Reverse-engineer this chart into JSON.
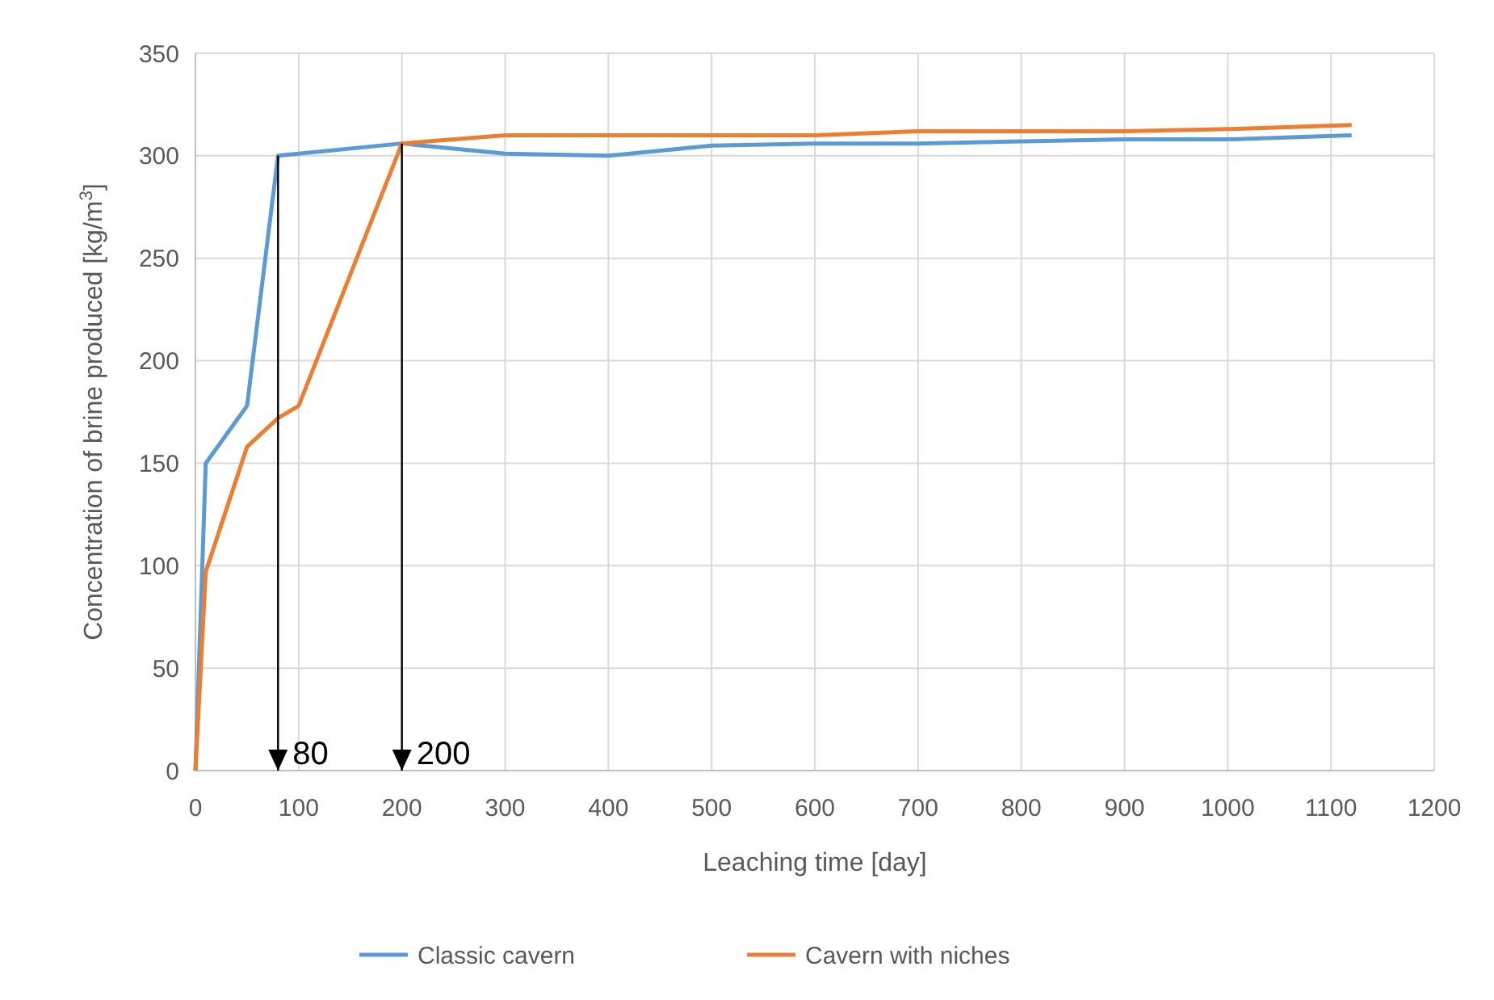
{
  "chart_data": {
    "type": "line",
    "xlabel": "Leaching time [day]",
    "ylabel": "Concentration of brine produced [kg/m$^{3}$]",
    "xlim": [
      0,
      1200
    ],
    "xticks": [
      0,
      100,
      200,
      300,
      400,
      500,
      600,
      700,
      800,
      900,
      1000,
      1100,
      1200
    ],
    "ylim": [
      0,
      350
    ],
    "yticks": [
      0,
      50,
      100,
      150,
      200,
      250,
      300,
      350
    ],
    "grid": true,
    "legend": "bottom",
    "marker": "none",
    "line_style": "solid",
    "series": [
      {
        "name": "Classic cavern",
        "color": "#5b9bd5",
        "x": [
          0,
          10,
          50,
          80,
          200,
          300,
          400,
          500,
          600,
          700,
          800,
          900,
          1000,
          1120
        ],
        "values": [
          0,
          150,
          178,
          300,
          306,
          301,
          300,
          305,
          306,
          306,
          307,
          308,
          308,
          310
        ]
      },
      {
        "name": "Cavern with niches",
        "color": "#ed7d31",
        "x": [
          0,
          10,
          50,
          80,
          100,
          200,
          300,
          400,
          500,
          600,
          700,
          800,
          900,
          1000,
          1120
        ],
        "values": [
          0,
          97,
          158,
          172,
          178,
          306,
          310,
          310,
          310,
          310,
          312,
          312,
          312,
          313,
          315
        ]
      }
    ],
    "ref_lines": [
      {
        "axis": "x",
        "value": 80,
        "label": "80",
        "color": "#000000"
      },
      {
        "axis": "x",
        "value": 200,
        "label": "200",
        "color": "#000000"
      }
    ]
  }
}
